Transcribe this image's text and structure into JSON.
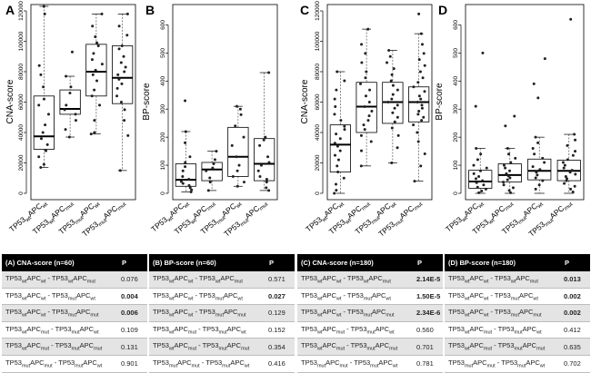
{
  "chart_data": [
    {
      "type": "boxplot",
      "panel_label": "A",
      "ylabel": "CNA-score",
      "ylim": [
        0,
        120000
      ],
      "yticks": [
        "0",
        "20000",
        "40000",
        "60000",
        "80000",
        "100000",
        "120000"
      ],
      "yticks_values": [
        0,
        20000,
        40000,
        60000,
        80000,
        100000,
        120000
      ],
      "categories": [
        {
          "a": "TP53",
          "as": "wt",
          "b": "APC",
          "bs": "wt"
        },
        {
          "a": "TP53",
          "as": "wt",
          "b": "APC",
          "bs": "mut"
        },
        {
          "a": "TP53",
          "as": "mut",
          "b": "APC",
          "bs": "wt"
        },
        {
          "a": "TP53",
          "as": "mut",
          "b": "APC",
          "bs": "mut"
        }
      ],
      "boxes": [
        {
          "min": 17000,
          "q1": 29000,
          "median": 37500,
          "q3": 64000,
          "max": 123000
        },
        {
          "min": 37000,
          "q1": 52000,
          "median": 55500,
          "q3": 68000,
          "max": 77000
        },
        {
          "min": 39000,
          "q1": 64000,
          "median": 80000,
          "q3": 98000,
          "max": 118000
        },
        {
          "min": 15000,
          "q1": 59000,
          "median": 76000,
          "q3": 97000,
          "max": 118000
        }
      ],
      "points": [
        [
          123000,
          118000,
          84000,
          78000,
          70000,
          62000,
          58000,
          52000,
          45000,
          40000,
          36000,
          32000,
          28000,
          24000,
          19000,
          17000
        ],
        [
          93000,
          77000,
          70000,
          66000,
          58000,
          55000,
          52000,
          48000,
          42000,
          37000
        ],
        [
          118000,
          110000,
          103000,
          99000,
          97000,
          92000,
          88000,
          85000,
          81000,
          78000,
          74000,
          68000,
          64000,
          58000,
          48000,
          40000,
          39000
        ],
        [
          118000,
          110000,
          104000,
          97000,
          95000,
          90000,
          86000,
          83000,
          80000,
          78000,
          75000,
          72000,
          69000,
          64000,
          60000,
          55000,
          48000,
          38000,
          15000
        ]
      ]
    },
    {
      "type": "boxplot",
      "panel_label": "B",
      "ylabel": "BP-score",
      "ylim": [
        0,
        650
      ],
      "yticks": [
        "0",
        "100",
        "200",
        "300",
        "400",
        "500",
        "600"
      ],
      "yticks_values": [
        0,
        100,
        200,
        300,
        400,
        500,
        600
      ],
      "categories": [
        {
          "a": "TP53",
          "as": "wt",
          "b": "APC",
          "bs": "wt"
        },
        {
          "a": "TP53",
          "as": "wt",
          "b": "APC",
          "bs": "mut"
        },
        {
          "a": "TP53",
          "as": "mut",
          "b": "APC",
          "bs": "wt"
        },
        {
          "a": "TP53",
          "as": "mut",
          "b": "APC",
          "bs": "mut"
        }
      ],
      "boxes": [
        {
          "min": 5,
          "q1": 25,
          "median": 48,
          "q3": 105,
          "max": 220
        },
        {
          "min": 10,
          "q1": 45,
          "median": 85,
          "q3": 110,
          "max": 150
        },
        {
          "min": 25,
          "q1": 60,
          "median": 130,
          "q3": 235,
          "max": 310
        },
        {
          "min": 10,
          "q1": 45,
          "median": 105,
          "q3": 195,
          "max": 430
        }
      ],
      "points": [
        [
          330,
          220,
          180,
          130,
          110,
          95,
          80,
          60,
          50,
          42,
          35,
          28,
          20,
          12,
          5
        ],
        [
          150,
          120,
          105,
          90,
          80,
          55,
          40,
          10
        ],
        [
          310,
          300,
          280,
          240,
          200,
          170,
          130,
          100,
          80,
          60,
          40,
          25
        ],
        [
          430,
          200,
          190,
          170,
          130,
          110,
          100,
          80,
          60,
          50,
          40,
          20,
          10
        ]
      ]
    },
    {
      "type": "boxplot",
      "panel_label": "C",
      "ylabel": "CNA-score",
      "ylim": [
        0,
        120000
      ],
      "yticks": [
        "0",
        "20000",
        "40000",
        "60000",
        "80000",
        "100000",
        "120000"
      ],
      "yticks_values": [
        0,
        20000,
        40000,
        60000,
        80000,
        100000,
        120000
      ],
      "categories": [
        {
          "a": "TP53",
          "as": "wt",
          "b": "APC",
          "bs": "wt"
        },
        {
          "a": "TP53",
          "as": "wt",
          "b": "APC",
          "bs": "mut"
        },
        {
          "a": "TP53",
          "as": "mut",
          "b": "APC",
          "bs": "wt"
        },
        {
          "a": "TP53",
          "as": "mut",
          "b": "APC",
          "bs": "mut"
        }
      ],
      "boxes": [
        {
          "min": 0,
          "q1": 14000,
          "median": 32000,
          "q3": 45000,
          "max": 80000
        },
        {
          "min": 18000,
          "q1": 40000,
          "median": 57000,
          "q3": 73000,
          "max": 108000
        },
        {
          "min": 20000,
          "q1": 46000,
          "median": 60000,
          "q3": 73000,
          "max": 94000
        },
        {
          "min": 8000,
          "q1": 47000,
          "median": 60000,
          "q3": 70000,
          "max": 105000
        }
      ],
      "points": [
        [
          80000,
          74000,
          68000,
          62000,
          57000,
          52000,
          48000,
          44000,
          42000,
          39000,
          36000,
          33000,
          31000,
          28000,
          25000,
          22000,
          18000,
          14000,
          10000,
          6000,
          2000,
          0
        ],
        [
          108000,
          98000,
          92000,
          86000,
          80000,
          76000,
          72000,
          68000,
          64000,
          60000,
          57000,
          54000,
          51000,
          48000,
          45000,
          42000,
          38000,
          34000,
          28000,
          18000
        ],
        [
          94000,
          90000,
          86000,
          82000,
          78000,
          74000,
          71000,
          68000,
          65000,
          62000,
          60000,
          58000,
          56000,
          53000,
          50000,
          47000,
          43000,
          38000,
          30000,
          20000
        ],
        [
          118000,
          105000,
          98000,
          92000,
          88000,
          84000,
          80000,
          76000,
          73000,
          70000,
          67000,
          64000,
          62000,
          60000,
          58000,
          56000,
          54000,
          52000,
          50000,
          48000,
          45000,
          40000,
          34000,
          26000,
          18000,
          8000
        ]
      ]
    },
    {
      "type": "boxplot",
      "panel_label": "D",
      "ylabel": "BP-score",
      "ylim": [
        0,
        650
      ],
      "yticks": [
        "0",
        "100",
        "200",
        "300",
        "400",
        "500",
        "600"
      ],
      "yticks_values": [
        0,
        100,
        200,
        300,
        400,
        500,
        600
      ],
      "categories": [
        {
          "a": "TP53",
          "as": "wt",
          "b": "APC",
          "bs": "wt"
        },
        {
          "a": "TP53",
          "as": "wt",
          "b": "APC",
          "bs": "mut"
        },
        {
          "a": "TP53",
          "as": "mut",
          "b": "APC",
          "bs": "wt"
        },
        {
          "a": "TP53",
          "as": "mut",
          "b": "APC",
          "bs": "mut"
        }
      ],
      "boxes": [
        {
          "min": 0,
          "q1": 18,
          "median": 42,
          "q3": 82,
          "max": 160
        },
        {
          "min": 0,
          "q1": 40,
          "median": 65,
          "q3": 105,
          "max": 160
        },
        {
          "min": 0,
          "q1": 48,
          "median": 80,
          "q3": 122,
          "max": 200
        },
        {
          "min": 0,
          "q1": 45,
          "median": 80,
          "q3": 118,
          "max": 210
        }
      ],
      "points": [
        [
          500,
          310,
          160,
          140,
          120,
          100,
          90,
          80,
          70,
          60,
          52,
          45,
          38,
          30,
          22,
          15,
          8,
          2
        ],
        [
          275,
          240,
          160,
          140,
          125,
          110,
          100,
          90,
          80,
          70,
          62,
          55,
          48,
          40,
          30,
          20,
          10,
          2
        ],
        [
          480,
          390,
          340,
          200,
          180,
          160,
          140,
          125,
          110,
          95,
          85,
          75,
          65,
          55,
          45,
          30,
          15
        ],
        [
          620,
          210,
          190,
          170,
          150,
          135,
          120,
          110,
          100,
          90,
          82,
          75,
          68,
          60,
          52,
          45,
          35,
          25,
          15,
          5
        ]
      ]
    }
  ],
  "tables": [
    {
      "title": "(A) CNA-score (n=60)",
      "p_header": "P",
      "rows": [
        {
          "l1": "TP53",
          "l1s": "wt",
          "l2": "APC",
          "l2s": "wt",
          "r1": "TP53",
          "r1s": "wt",
          "r2": "APC",
          "r2s": "mut",
          "p": "0.076",
          "bold": false
        },
        {
          "l1": "TP53",
          "l1s": "wt",
          "l2": "APC",
          "l2s": "wt",
          "r1": "TP53",
          "r1s": "mut",
          "r2": "APC",
          "r2s": "wt",
          "p": "0.004",
          "bold": true
        },
        {
          "l1": "TP53",
          "l1s": "wt",
          "l2": "APC",
          "l2s": "wt",
          "r1": "TP53",
          "r1s": "mut",
          "r2": "APC",
          "r2s": "mut",
          "p": "0.006",
          "bold": true
        },
        {
          "l1": "TP53",
          "l1s": "wt",
          "l2": "APC",
          "l2s": "mut",
          "r1": "TP53",
          "r1s": "mut",
          "r2": "APC",
          "r2s": "wt",
          "p": "0.109",
          "bold": false
        },
        {
          "l1": "TP53",
          "l1s": "wt",
          "l2": "APC",
          "l2s": "mut",
          "r1": "TP53",
          "r1s": "mut",
          "r2": "APC",
          "r2s": "mut",
          "p": "0.131",
          "bold": false
        },
        {
          "l1": "TP53",
          "l1s": "mut",
          "l2": "APC",
          "l2s": "mut",
          "r1": "TP53",
          "r1s": "mut",
          "r2": "APC",
          "r2s": "wt",
          "p": "0.901",
          "bold": false
        }
      ]
    },
    {
      "title": "(B) BP-score (n=60)",
      "p_header": "P",
      "rows": [
        {
          "l1": "TP53",
          "l1s": "wt",
          "l2": "APC",
          "l2s": "wt",
          "r1": "TP53",
          "r1s": "wt",
          "r2": "APC",
          "r2s": "mut",
          "p": "0.571",
          "bold": false
        },
        {
          "l1": "TP53",
          "l1s": "wt",
          "l2": "APC",
          "l2s": "wt",
          "r1": "TP53",
          "r1s": "mut",
          "r2": "APC",
          "r2s": "wt",
          "p": "0.027",
          "bold": true
        },
        {
          "l1": "TP53",
          "l1s": "wt",
          "l2": "APC",
          "l2s": "wt",
          "r1": "TP53",
          "r1s": "mut",
          "r2": "APC",
          "r2s": "mut",
          "p": "0.129",
          "bold": false
        },
        {
          "l1": "TP53",
          "l1s": "wt",
          "l2": "APC",
          "l2s": "mut",
          "r1": "TP53",
          "r1s": "mut",
          "r2": "APC",
          "r2s": "wt",
          "p": "0.152",
          "bold": false
        },
        {
          "l1": "TP53",
          "l1s": "wt",
          "l2": "APC",
          "l2s": "mut",
          "r1": "TP53",
          "r1s": "mut",
          "r2": "APC",
          "r2s": "mut",
          "p": "0.354",
          "bold": false
        },
        {
          "l1": "TP53",
          "l1s": "mut",
          "l2": "APC",
          "l2s": "mut",
          "r1": "TP53",
          "r1s": "mut",
          "r2": "APC",
          "r2s": "wt",
          "p": "0.416",
          "bold": false
        }
      ]
    },
    {
      "title": "(C) CNA-score (n=180)",
      "p_header": "P",
      "rows": [
        {
          "l1": "TP53",
          "l1s": "wt",
          "l2": "APC",
          "l2s": "wt",
          "r1": "TP53",
          "r1s": "wt",
          "r2": "APC",
          "r2s": "mut",
          "p": "2.14E-5",
          "bold": true
        },
        {
          "l1": "TP53",
          "l1s": "wt",
          "l2": "APC",
          "l2s": "wt",
          "r1": "TP53",
          "r1s": "mut",
          "r2": "APC",
          "r2s": "wt",
          "p": "1.50E-5",
          "bold": true
        },
        {
          "l1": "TP53",
          "l1s": "wt",
          "l2": "APC",
          "l2s": "wt",
          "r1": "TP53",
          "r1s": "mut",
          "r2": "APC",
          "r2s": "mut",
          "p": "2.34E-6",
          "bold": true
        },
        {
          "l1": "TP53",
          "l1s": "wt",
          "l2": "APC",
          "l2s": "mut",
          "r1": "TP53",
          "r1s": "mut",
          "r2": "APC",
          "r2s": "wt",
          "p": "0.560",
          "bold": false
        },
        {
          "l1": "TP53",
          "l1s": "wt",
          "l2": "APC",
          "l2s": "mut",
          "r1": "TP53",
          "r1s": "mut",
          "r2": "APC",
          "r2s": "mut",
          "p": "0.701",
          "bold": false
        },
        {
          "l1": "TP53",
          "l1s": "mut",
          "l2": "APC",
          "l2s": "mut",
          "r1": "TP53",
          "r1s": "mut",
          "r2": "APC",
          "r2s": "wt",
          "p": "0.781",
          "bold": false
        }
      ]
    },
    {
      "title": "(D) BP-score (n=180)",
      "p_header": "P",
      "rows": [
        {
          "l1": "TP53",
          "l1s": "wt",
          "l2": "APC",
          "l2s": "wt",
          "r1": "TP53",
          "r1s": "wt",
          "r2": "APC",
          "r2s": "mut",
          "p": "0.013",
          "bold": true
        },
        {
          "l1": "TP53",
          "l1s": "wt",
          "l2": "APC",
          "l2s": "wt",
          "r1": "TP53",
          "r1s": "mut",
          "r2": "APC",
          "r2s": "wt",
          "p": "0.002",
          "bold": true
        },
        {
          "l1": "TP53",
          "l1s": "wt",
          "l2": "APC",
          "l2s": "wt",
          "r1": "TP53",
          "r1s": "mut",
          "r2": "APC",
          "r2s": "mut",
          "p": "0.002",
          "bold": true
        },
        {
          "l1": "TP53",
          "l1s": "wt",
          "l2": "APC",
          "l2s": "mut",
          "r1": "TP53",
          "r1s": "mut",
          "r2": "APC",
          "r2s": "wt",
          "p": "0.412",
          "bold": false
        },
        {
          "l1": "TP53",
          "l1s": "wt",
          "l2": "APC",
          "l2s": "mut",
          "r1": "TP53",
          "r1s": "mut",
          "r2": "APC",
          "r2s": "mut",
          "p": "0.635",
          "bold": false
        },
        {
          "l1": "TP53",
          "l1s": "mut",
          "l2": "APC",
          "l2s": "mut",
          "r1": "TP53",
          "r1s": "mut",
          "r2": "APC",
          "r2s": "wt",
          "p": "0.702",
          "bold": false
        }
      ]
    }
  ],
  "colors": {
    "box_stroke": "#000000",
    "point_fill": "#222222",
    "whisker": "#555555",
    "header_bg": "#000000",
    "row_shade": "#e4e4e4"
  }
}
